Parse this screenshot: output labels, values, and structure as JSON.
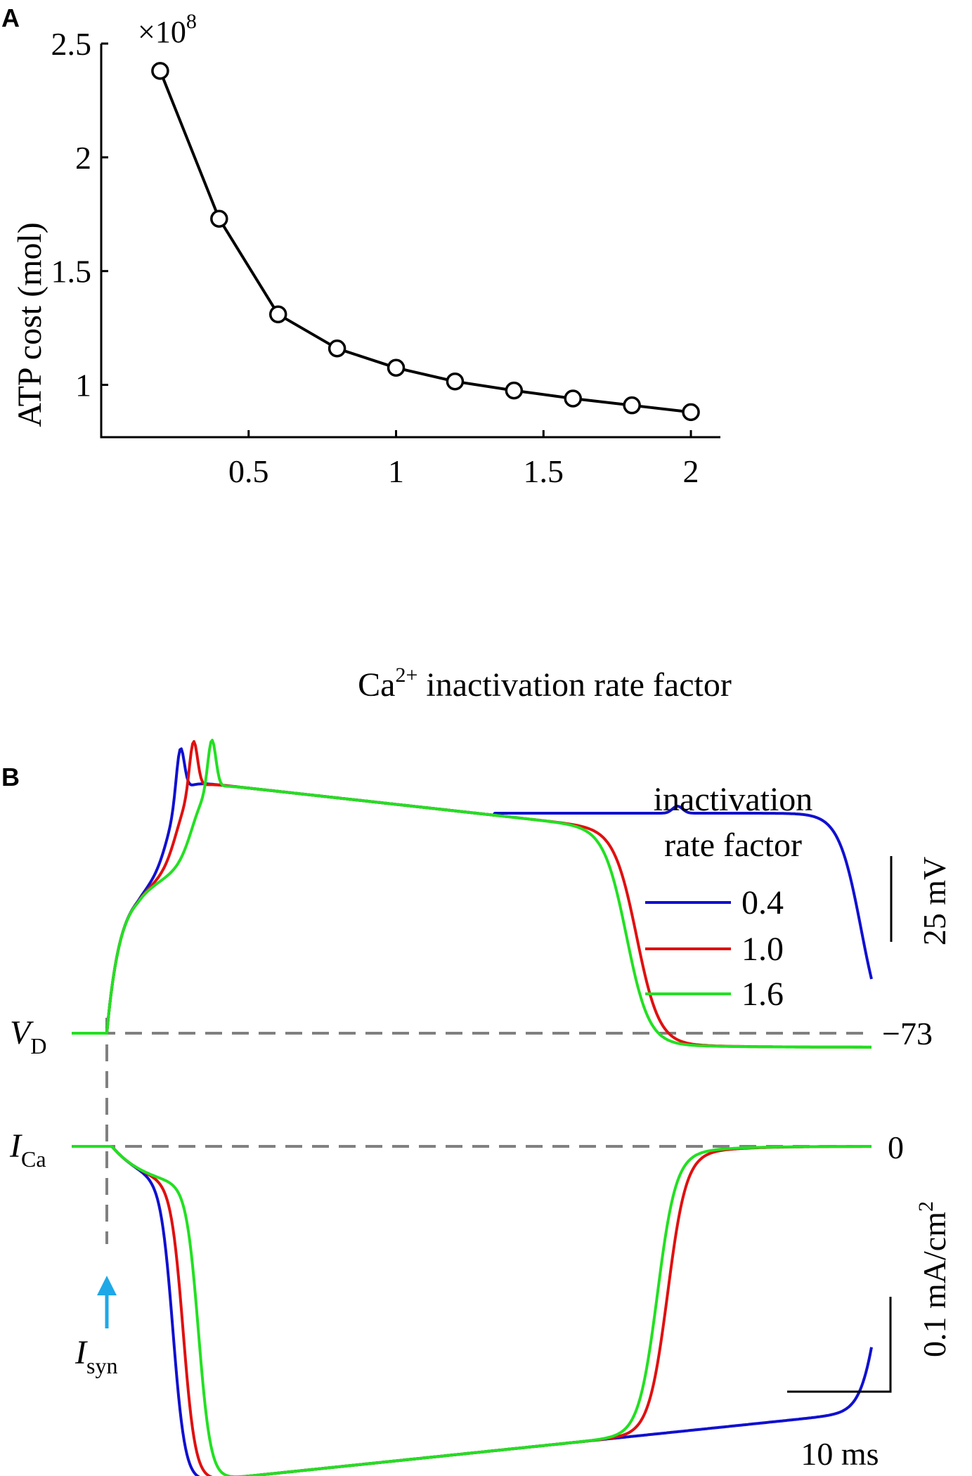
{
  "panels": {
    "a_label": "A",
    "b_label": "B"
  },
  "chart_data": [
    {
      "type": "line",
      "panel": "A",
      "title": "",
      "xlabel_base": "Ca",
      "xlabel_sup": "2+",
      "xlabel_rest": " inactivation rate factor",
      "ylabel": "ATP cost (mol)",
      "y_multiplier_base": "×10",
      "y_multiplier_exp": "8",
      "x": [
        0.2,
        0.4,
        0.6,
        0.8,
        1.0,
        1.2,
        1.4,
        1.6,
        1.8,
        2.0
      ],
      "y": [
        2.38,
        1.73,
        1.31,
        1.16,
        1.075,
        1.015,
        0.975,
        0.94,
        0.91,
        0.88
      ],
      "xlim": [
        0.0,
        2.1
      ],
      "ylim": [
        0.77,
        2.5
      ],
      "xticks": [
        0.5,
        1,
        1.5,
        2
      ],
      "xtick_labels": [
        "0.5",
        "1",
        "1.5",
        "2"
      ],
      "yticks": [
        1,
        1.5,
        2,
        2.5
      ],
      "ytick_labels": [
        "1",
        "1.5",
        "2",
        "2.5"
      ],
      "line_color": "#000000",
      "marker": "circle"
    },
    {
      "type": "line",
      "panel": "B",
      "legend_title_1": "inactivation",
      "legend_title_2": "rate factor",
      "legend_position": "top-right",
      "time_unit": "ms",
      "series": [
        {
          "name": "0.4",
          "color": "#1010d0",
          "vd_plateau_end_ms": 74,
          "ica_recovery_ms": 76
        },
        {
          "name": "1.0",
          "color": "#e01010",
          "vd_plateau_end_ms": 52,
          "ica_recovery_ms": 55
        },
        {
          "name": "1.6",
          "color": "#22e022",
          "vd_plateau_end_ms": 51,
          "ica_recovery_ms": 54
        }
      ],
      "trace_vd_label_base": "V",
      "trace_vd_label_sub": "D",
      "trace_ica_label_base": "I",
      "trace_ica_label_sub": "Ca",
      "vd_baseline_label": "−73",
      "ica_baseline_label": "0",
      "scale_voltage": "25 mV",
      "scale_current_pre": "0.1 mA/cm",
      "scale_current_sup": "2",
      "scale_time": "10 ms",
      "stimulus_label_base": "I",
      "stimulus_label_sub": "syn",
      "stimulus_color": "#1ea8e8",
      "baseline_color": "#808080"
    }
  ]
}
